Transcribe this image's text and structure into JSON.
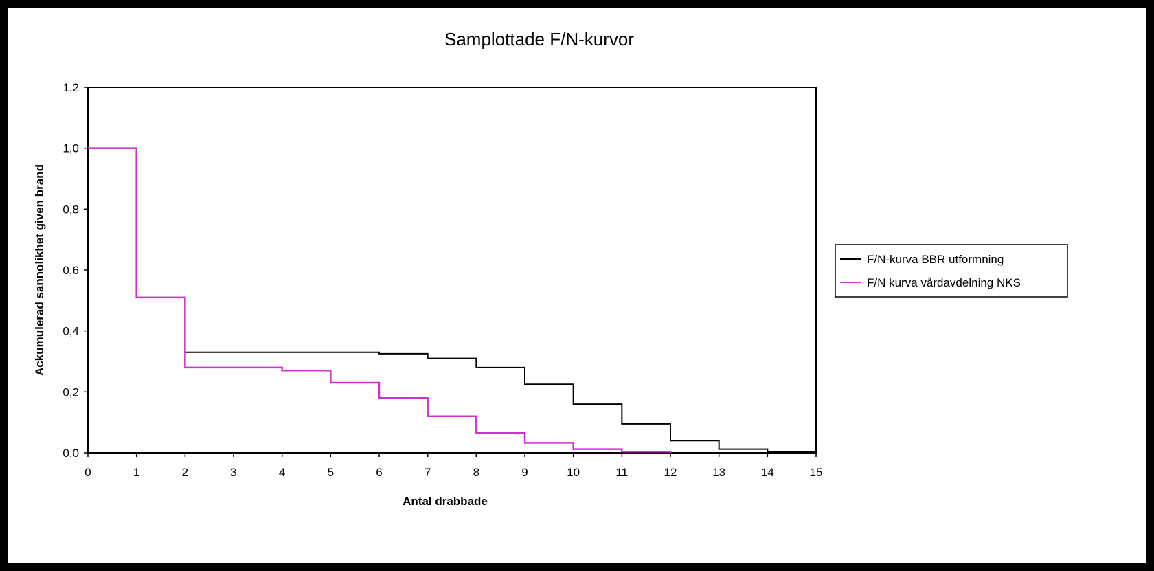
{
  "chart_data": {
    "type": "line",
    "title": "Samplottade F/N-kurvor",
    "xlabel": "Antal drabbade",
    "ylabel": "Ackumulerad sannolikhet given brand",
    "xlim": [
      0,
      15
    ],
    "ylim": [
      0,
      1.2
    ],
    "xticks": [
      "0",
      "1",
      "2",
      "3",
      "4",
      "5",
      "6",
      "7",
      "8",
      "9",
      "10",
      "11",
      "12",
      "13",
      "14",
      "15"
    ],
    "yticks": [
      "0,0",
      "0,2",
      "0,4",
      "0,6",
      "0,8",
      "1,0",
      "1,2"
    ],
    "grid": false,
    "legend_position": "right",
    "step": true,
    "series": [
      {
        "name": "F/N-kurva BBR utformning",
        "color": "#000000",
        "x": [
          0,
          1,
          2,
          3,
          4,
          5,
          6,
          7,
          8,
          9,
          10,
          11,
          12,
          13,
          14,
          15
        ],
        "y": [
          1.0,
          0.51,
          0.33,
          0.33,
          0.33,
          0.33,
          0.325,
          0.31,
          0.28,
          0.225,
          0.16,
          0.095,
          0.04,
          0.012,
          0.003,
          0.0
        ]
      },
      {
        "name": "F/N kurva vårdavdelning NKS",
        "color": "#cc33cc",
        "x": [
          0,
          1,
          2,
          3,
          4,
          5,
          6,
          7,
          8,
          9,
          10,
          11,
          12
        ],
        "y": [
          1.0,
          0.51,
          0.28,
          0.28,
          0.27,
          0.23,
          0.18,
          0.12,
          0.065,
          0.033,
          0.012,
          0.004,
          0.0
        ]
      }
    ]
  }
}
